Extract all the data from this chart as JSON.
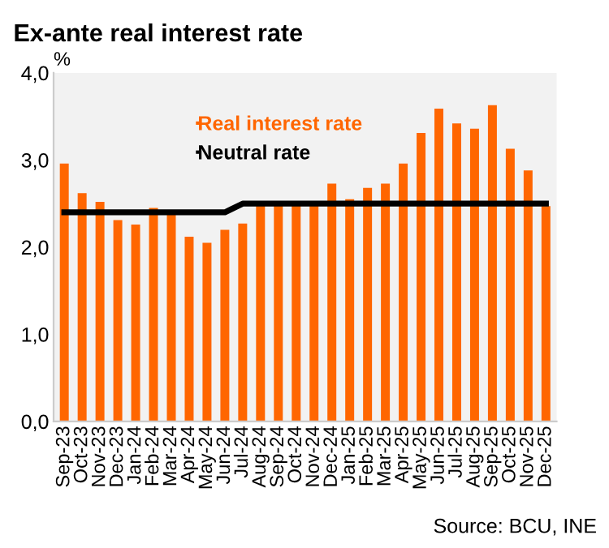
{
  "chart_data": {
    "type": "bar",
    "title": "Ex-ante real interest rate",
    "ylabel": "%",
    "categories": [
      "Sep-23",
      "Oct-23",
      "Nov-23",
      "Dec-23",
      "Jan-24",
      "Feb-24",
      "Mar-24",
      "Apr-24",
      "May-24",
      "Jun-24",
      "Jul-24",
      "Aug-24",
      "Sep-24",
      "Oct-24",
      "Nov-24",
      "Dec-24",
      "Jan-25",
      "Feb-25",
      "Mar-25",
      "Apr-25",
      "May-25",
      "Jun-25",
      "Jul-25",
      "Aug-25",
      "Sep-25",
      "Oct-25",
      "Nov-25",
      "Dec-25"
    ],
    "series": [
      {
        "name": "Real interest rate",
        "color": "#ff6600",
        "values": [
          2.96,
          2.62,
          2.52,
          2.31,
          2.26,
          2.45,
          2.4,
          2.12,
          2.05,
          2.2,
          2.27,
          2.5,
          2.5,
          2.5,
          2.5,
          2.73,
          2.55,
          2.68,
          2.73,
          2.96,
          3.31,
          3.59,
          3.42,
          3.36,
          3.63,
          3.13,
          2.88,
          2.47
        ]
      },
      {
        "name": "Neutral rate",
        "color": "#000000",
        "type": "line",
        "values": [
          2.4,
          2.4,
          2.4,
          2.4,
          2.4,
          2.4,
          2.4,
          2.4,
          2.4,
          2.4,
          2.5,
          2.5,
          2.5,
          2.5,
          2.5,
          2.5,
          2.5,
          2.5,
          2.5,
          2.5,
          2.5,
          2.5,
          2.5,
          2.5,
          2.5,
          2.5,
          2.5,
          2.5
        ]
      }
    ],
    "ylim": [
      0,
      4
    ],
    "yticks": [
      {
        "value": 0,
        "label": "0,0"
      },
      {
        "value": 1,
        "label": "1,0"
      },
      {
        "value": 2,
        "label": "2,0"
      },
      {
        "value": 3,
        "label": "3,0"
      },
      {
        "value": 4,
        "label": "4,0"
      }
    ],
    "grid": false,
    "legend": "top",
    "marker": "none",
    "line_style": "solid",
    "annotations": [
      "Source: BCU, INE"
    ]
  }
}
